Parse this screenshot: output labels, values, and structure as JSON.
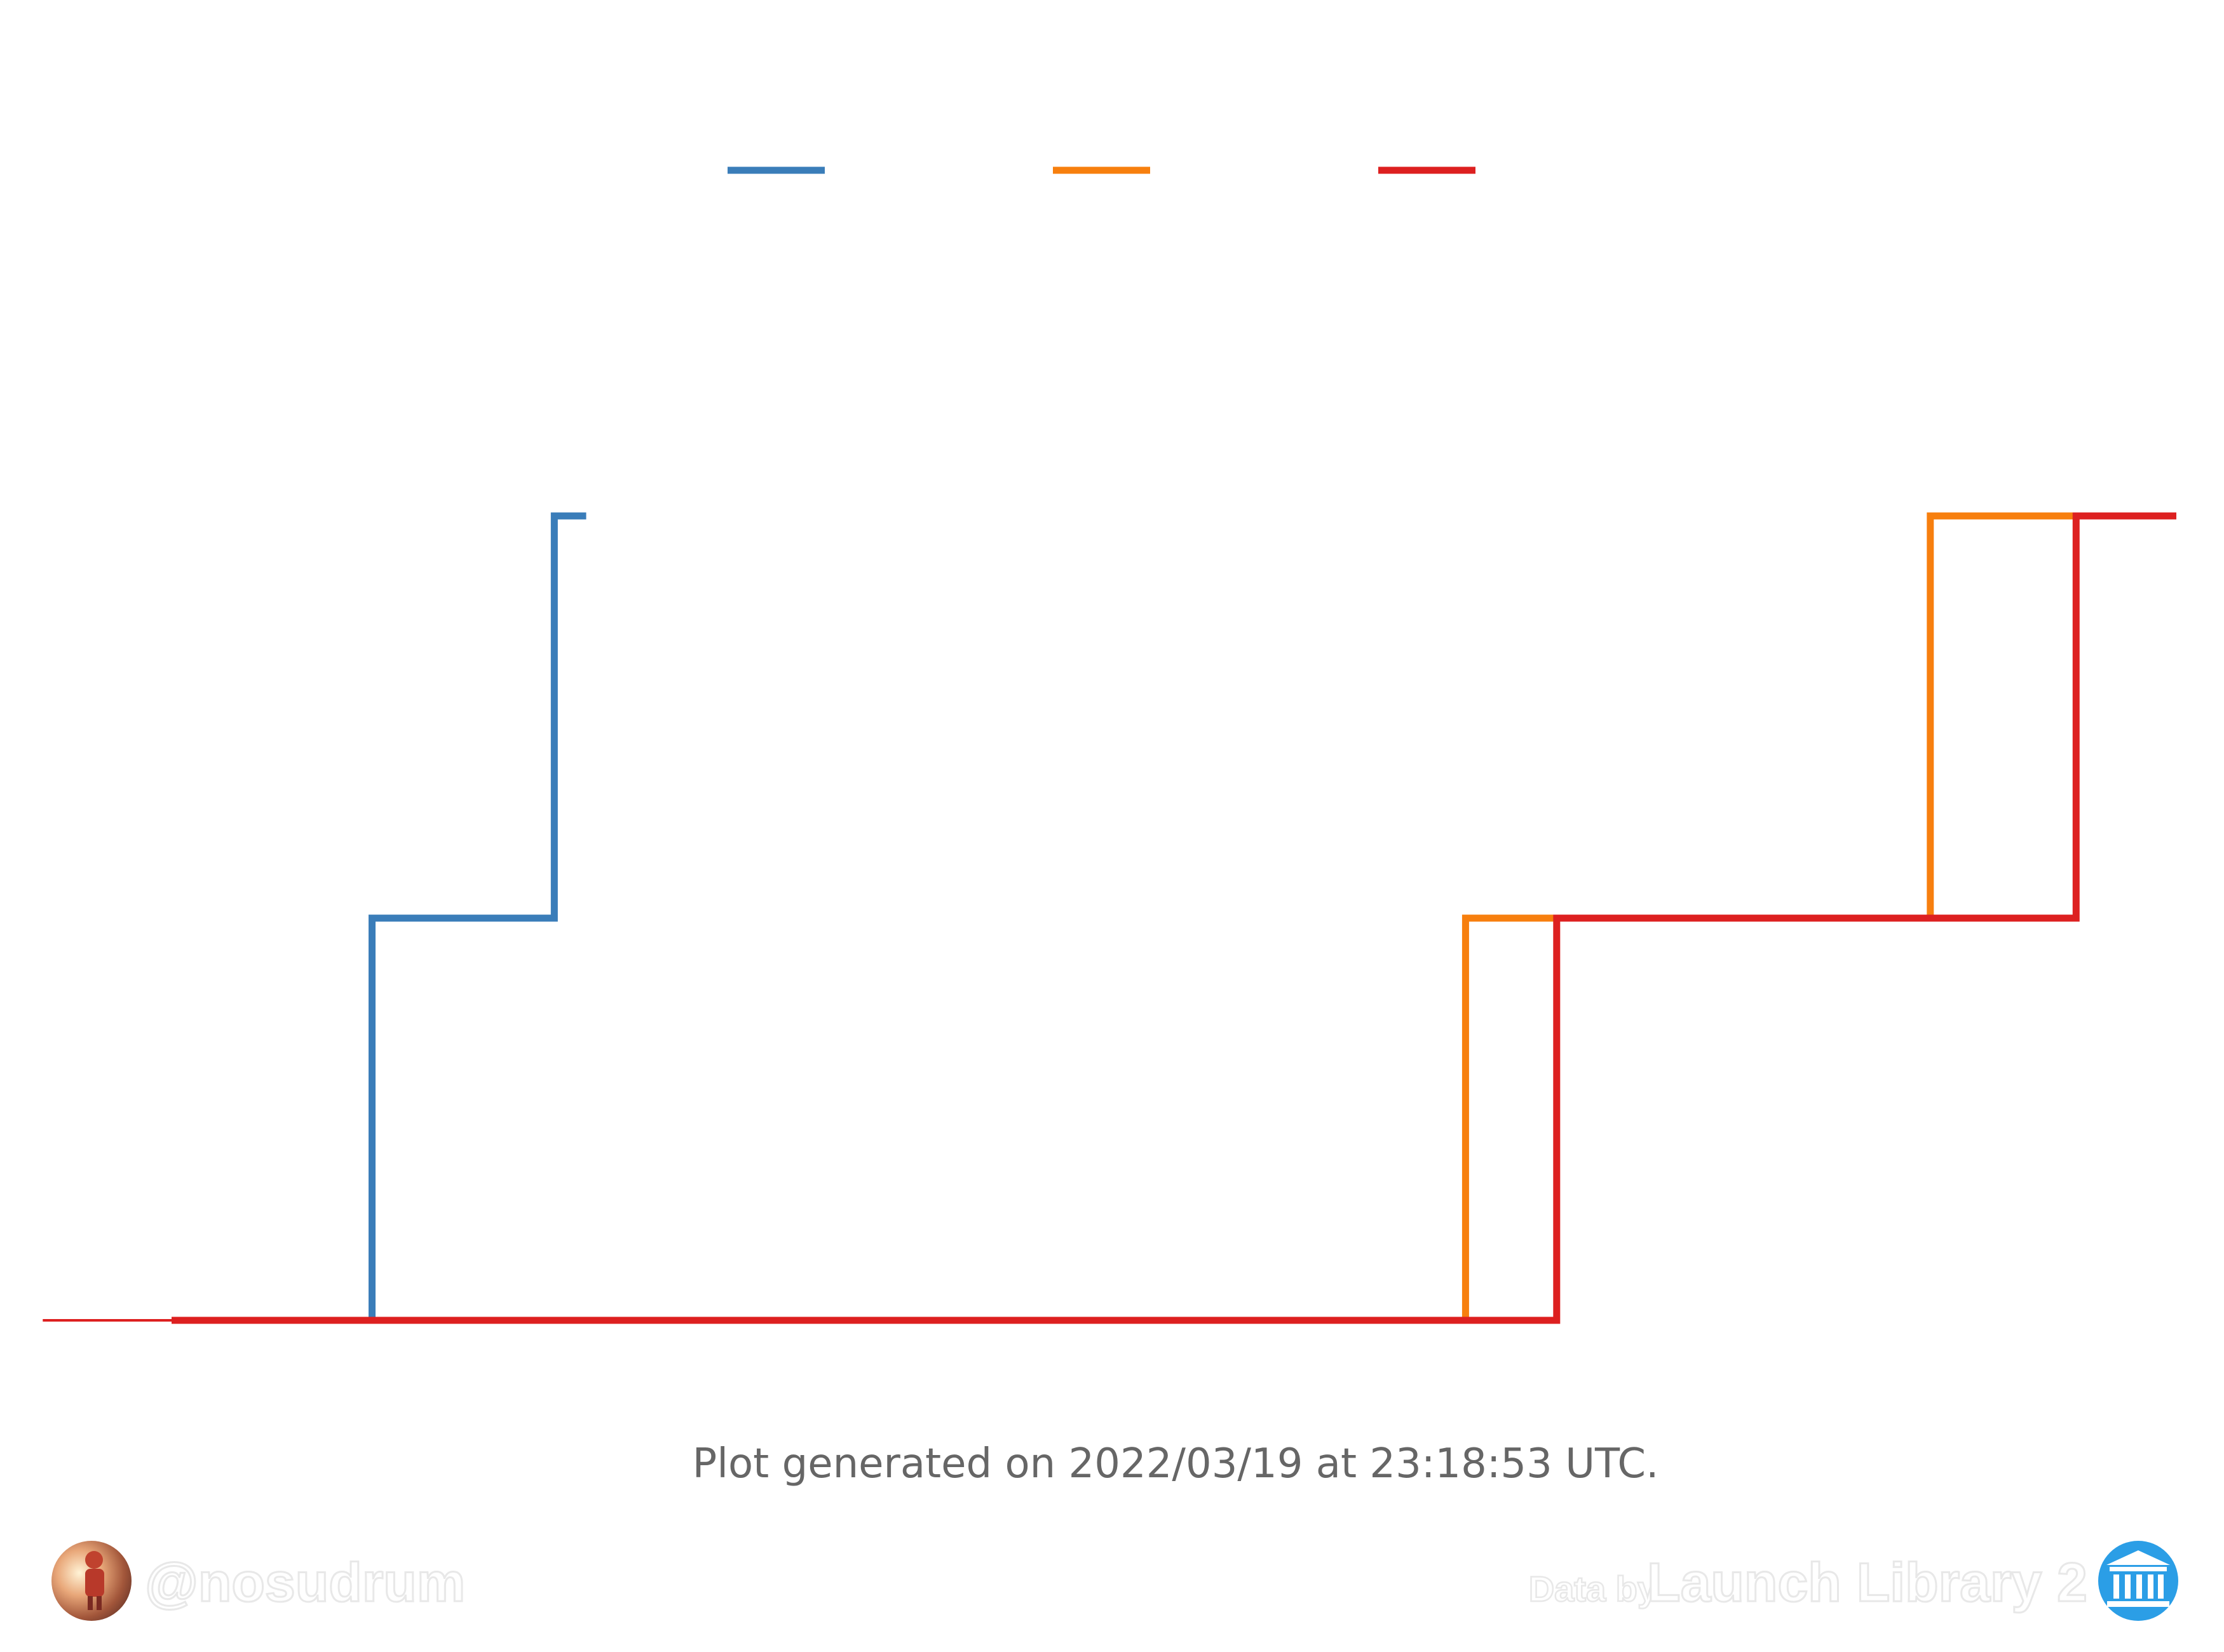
{
  "chart_data": {
    "type": "line",
    "step": "post",
    "x": [
      0,
      1,
      2,
      3,
      4,
      5,
      6,
      7,
      8,
      9,
      10,
      11,
      12,
      13,
      14,
      15,
      16,
      17,
      18,
      19,
      20,
      21,
      22
    ],
    "xlim": [
      0,
      22
    ],
    "ylim": [
      0,
      2
    ],
    "grid": false,
    "legend": "top-center",
    "series": [
      {
        "color": "#3a7db9",
        "x": [
          0,
          2.2,
          4.2,
          4.55
        ],
        "values": [
          0,
          1,
          2,
          2
        ]
      },
      {
        "color": "#f77f0e",
        "x": [
          0,
          14.2,
          19.3,
          22
        ],
        "values": [
          0,
          1,
          2,
          2
        ]
      },
      {
        "color": "#dd2020",
        "x": [
          0,
          15.2,
          20.9,
          22
        ],
        "values": [
          0,
          1,
          2,
          2
        ]
      }
    ]
  },
  "footer": {
    "timestamp_text": "Plot generated on 2022/03/19 at 23:18:53 UTC.",
    "handle": "@nosudrum",
    "credit_prefix": "Data by",
    "credit_source": "Launch Library 2"
  },
  "icons": {
    "avatar": "astronaut-avatar-icon",
    "source_logo": "launch-library-logo-icon"
  }
}
